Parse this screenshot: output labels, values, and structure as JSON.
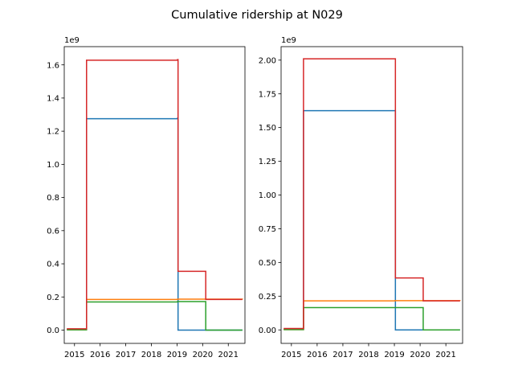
{
  "figure": {
    "title": "Cumulative ridership at N029"
  },
  "chart_data": [
    {
      "type": "line",
      "step": "post",
      "title": "",
      "xlabel": "",
      "ylabel": "",
      "offset_label": "1e9",
      "xlim": [
        2014.6,
        2021.65
      ],
      "ylim": [
        -0.08,
        1.71
      ],
      "xticks": [
        2015,
        2016,
        2017,
        2018,
        2019,
        2020,
        2021
      ],
      "xtick_labels": [
        "2015",
        "2016",
        "2017",
        "2018",
        "2019",
        "2020",
        "2021"
      ],
      "yticks": [
        0.0,
        0.2,
        0.4,
        0.6,
        0.8,
        1.0,
        1.2,
        1.4,
        1.6
      ],
      "ytick_labels": [
        "0.0",
        "0.2",
        "0.4",
        "0.6",
        "0.8",
        "1.0",
        "1.2",
        "1.4",
        "1.6"
      ],
      "grid": false,
      "series": [
        {
          "color": "#1f77b4",
          "x": [
            2014.7,
            2015.45,
            2015.47,
            2019.02,
            2019.04,
            2021.55
          ],
          "y": [
            0.005,
            0.005,
            1.275,
            1.278,
            0.0,
            0.0
          ]
        },
        {
          "color": "#ff7f0e",
          "x": [
            2014.7,
            2015.45,
            2015.47,
            2019.02,
            2021.55
          ],
          "y": [
            0.002,
            0.002,
            0.185,
            0.187,
            0.185
          ]
        },
        {
          "color": "#2ca02c",
          "x": [
            2014.7,
            2015.45,
            2015.47,
            2019.02,
            2020.1,
            2020.12,
            2021.55
          ],
          "y": [
            0.002,
            0.002,
            0.17,
            0.172,
            0.172,
            0.0,
            0.0
          ]
        },
        {
          "color": "#d62728",
          "x": [
            2014.7,
            2015.45,
            2015.47,
            2019.02,
            2019.04,
            2020.1,
            2020.12,
            2021.55
          ],
          "y": [
            0.008,
            0.008,
            1.628,
            1.632,
            0.355,
            0.355,
            0.185,
            0.185
          ]
        }
      ]
    },
    {
      "type": "line",
      "step": "post",
      "title": "",
      "xlabel": "",
      "ylabel": "",
      "offset_label": "1e9",
      "xlim": [
        2014.6,
        2021.65
      ],
      "ylim": [
        -0.1,
        2.1
      ],
      "xticks": [
        2015,
        2016,
        2017,
        2018,
        2019,
        2020,
        2021
      ],
      "xtick_labels": [
        "2015",
        "2016",
        "2017",
        "2018",
        "2019",
        "2020",
        "2021"
      ],
      "yticks": [
        0.0,
        0.25,
        0.5,
        0.75,
        1.0,
        1.25,
        1.5,
        1.75,
        2.0
      ],
      "ytick_labels": [
        "0.00",
        "0.25",
        "0.50",
        "0.75",
        "1.00",
        "1.25",
        "1.50",
        "1.75",
        "2.00"
      ],
      "grid": false,
      "series": [
        {
          "color": "#1f77b4",
          "x": [
            2014.7,
            2015.45,
            2015.47,
            2019.02,
            2019.04,
            2021.55
          ],
          "y": [
            0.005,
            0.005,
            1.625,
            1.625,
            0.0,
            0.0
          ]
        },
        {
          "color": "#ff7f0e",
          "x": [
            2014.7,
            2015.45,
            2015.47,
            2019.02,
            2021.55
          ],
          "y": [
            0.002,
            0.002,
            0.215,
            0.217,
            0.215
          ]
        },
        {
          "color": "#2ca02c",
          "x": [
            2014.7,
            2015.45,
            2015.47,
            2019.02,
            2020.1,
            2020.12,
            2021.55
          ],
          "y": [
            0.002,
            0.002,
            0.165,
            0.165,
            0.165,
            0.0,
            0.0
          ]
        },
        {
          "color": "#d62728",
          "x": [
            2014.7,
            2015.45,
            2015.47,
            2019.02,
            2019.04,
            2020.1,
            2020.12,
            2021.55
          ],
          "y": [
            0.01,
            0.01,
            2.01,
            2.01,
            0.385,
            0.385,
            0.215,
            0.215
          ]
        }
      ]
    }
  ]
}
